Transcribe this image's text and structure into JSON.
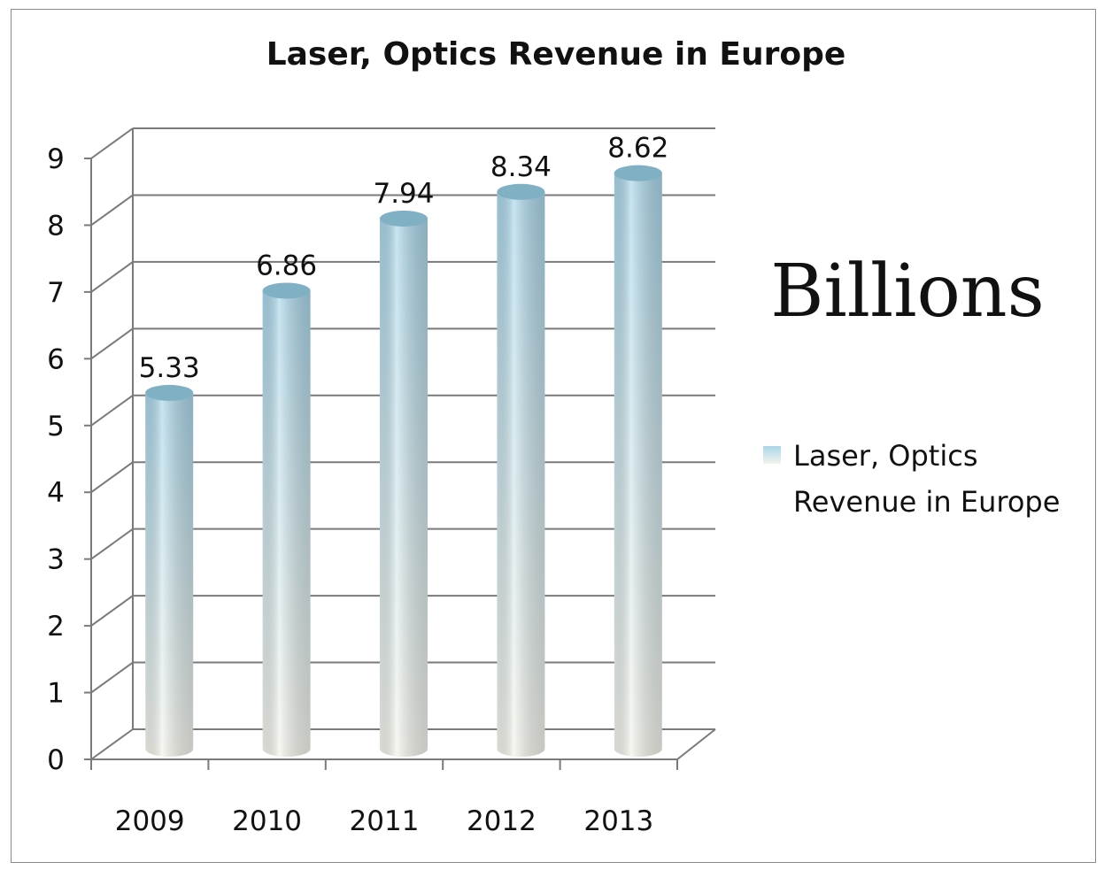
{
  "chart_data": {
    "type": "bar",
    "title": "Laser, Optics Revenue in Europe",
    "unit_label": "Billions",
    "categories": [
      "2009",
      "2010",
      "2011",
      "2012",
      "2013"
    ],
    "series": [
      {
        "name": "Laser, Optics Revenue in Europe",
        "values": [
          5.33,
          6.86,
          7.94,
          8.34,
          8.62
        ]
      }
    ],
    "data_labels": [
      "5.33",
      "6.86",
      "7.94",
      "8.34",
      "8.62"
    ],
    "y_ticks": [
      "0",
      "1",
      "2",
      "3",
      "4",
      "5",
      "6",
      "7",
      "8",
      "9"
    ],
    "ylim": [
      0,
      9
    ],
    "grid": true,
    "legend_position": "right",
    "legend_lines": [
      "Laser, Optics",
      "Revenue in Europe"
    ],
    "colors": {
      "bar_top": "#a9d6ea",
      "bar_bottom": "#f4f4ec",
      "cap": "#7fb0c4",
      "grid": "#7a7a7a"
    }
  }
}
